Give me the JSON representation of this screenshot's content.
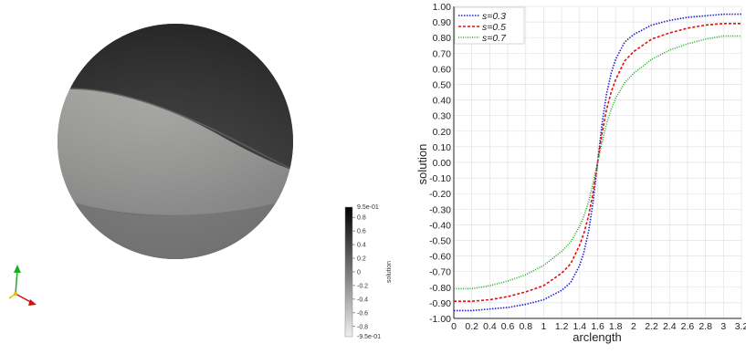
{
  "scene": {
    "colorbar": {
      "title": "solution",
      "top_label": "9.5e-01",
      "bottom_label": "-9.5e-01",
      "ticks": [
        {
          "label": "0.8",
          "value": 0.8
        },
        {
          "label": "0.6",
          "value": 0.6
        },
        {
          "label": "0.4",
          "value": 0.4
        },
        {
          "label": "0.2",
          "value": 0.2
        },
        {
          "label": "0",
          "value": 0
        },
        {
          "label": "-0.2",
          "value": -0.2
        },
        {
          "label": "-0.4",
          "value": -0.4
        },
        {
          "label": "-0.6",
          "value": -0.6
        },
        {
          "label": "-0.8",
          "value": -0.8
        }
      ],
      "range": [
        -0.95,
        0.95
      ]
    },
    "axes_colors": {
      "x": "#cc1111",
      "y": "#22aa22",
      "z": "#e0c000"
    }
  },
  "chart_data": {
    "type": "line",
    "xlabel": "arclength",
    "ylabel": "solution",
    "xlim": [
      0,
      3.2
    ],
    "ylim": [
      -1.0,
      1.0
    ],
    "x_ticks": [
      "0",
      "0.2",
      "0.4",
      "0.6",
      "0.8",
      "1",
      "1.2",
      "1.4",
      "1.6",
      "1.8",
      "2",
      "2.2",
      "2.4",
      "2.6",
      "2.8",
      "3",
      "3.2"
    ],
    "y_ticks": [
      "1.00",
      "0.90",
      "0.80",
      "0.70",
      "0.60",
      "0.50",
      "0.40",
      "0.30",
      "0.20",
      "0.10",
      "0.00",
      "-0.10",
      "-0.20",
      "-0.30",
      "-0.40",
      "-0.50",
      "-0.60",
      "-0.70",
      "-0.80",
      "-0.90",
      "-1.00"
    ],
    "grid": true,
    "legend_position": "top-left",
    "x": [
      0,
      0.2,
      0.4,
      0.6,
      0.8,
      1.0,
      1.2,
      1.3,
      1.4,
      1.45,
      1.5,
      1.55,
      1.6,
      1.65,
      1.7,
      1.75,
      1.8,
      1.9,
      2.0,
      2.2,
      2.4,
      2.6,
      2.8,
      3.0,
      3.2
    ],
    "series": [
      {
        "name": "s=0.3",
        "color": "#1f1fd6",
        "values": [
          -0.95,
          -0.95,
          -0.94,
          -0.93,
          -0.91,
          -0.88,
          -0.82,
          -0.77,
          -0.66,
          -0.57,
          -0.44,
          -0.25,
          0.0,
          0.25,
          0.44,
          0.57,
          0.66,
          0.77,
          0.82,
          0.88,
          0.91,
          0.93,
          0.94,
          0.95,
          0.95
        ]
      },
      {
        "name": "s=0.5",
        "color": "#dd1111",
        "values": [
          -0.89,
          -0.89,
          -0.88,
          -0.86,
          -0.83,
          -0.79,
          -0.71,
          -0.65,
          -0.53,
          -0.45,
          -0.34,
          -0.19,
          0.0,
          0.19,
          0.34,
          0.45,
          0.53,
          0.65,
          0.71,
          0.79,
          0.83,
          0.86,
          0.88,
          0.89,
          0.89
        ]
      },
      {
        "name": "s=0.7",
        "color": "#22aa22",
        "values": [
          -0.81,
          -0.81,
          -0.79,
          -0.76,
          -0.72,
          -0.66,
          -0.57,
          -0.51,
          -0.41,
          -0.34,
          -0.25,
          -0.13,
          0.0,
          0.13,
          0.25,
          0.34,
          0.41,
          0.51,
          0.57,
          0.66,
          0.72,
          0.76,
          0.79,
          0.81,
          0.81
        ]
      }
    ]
  }
}
